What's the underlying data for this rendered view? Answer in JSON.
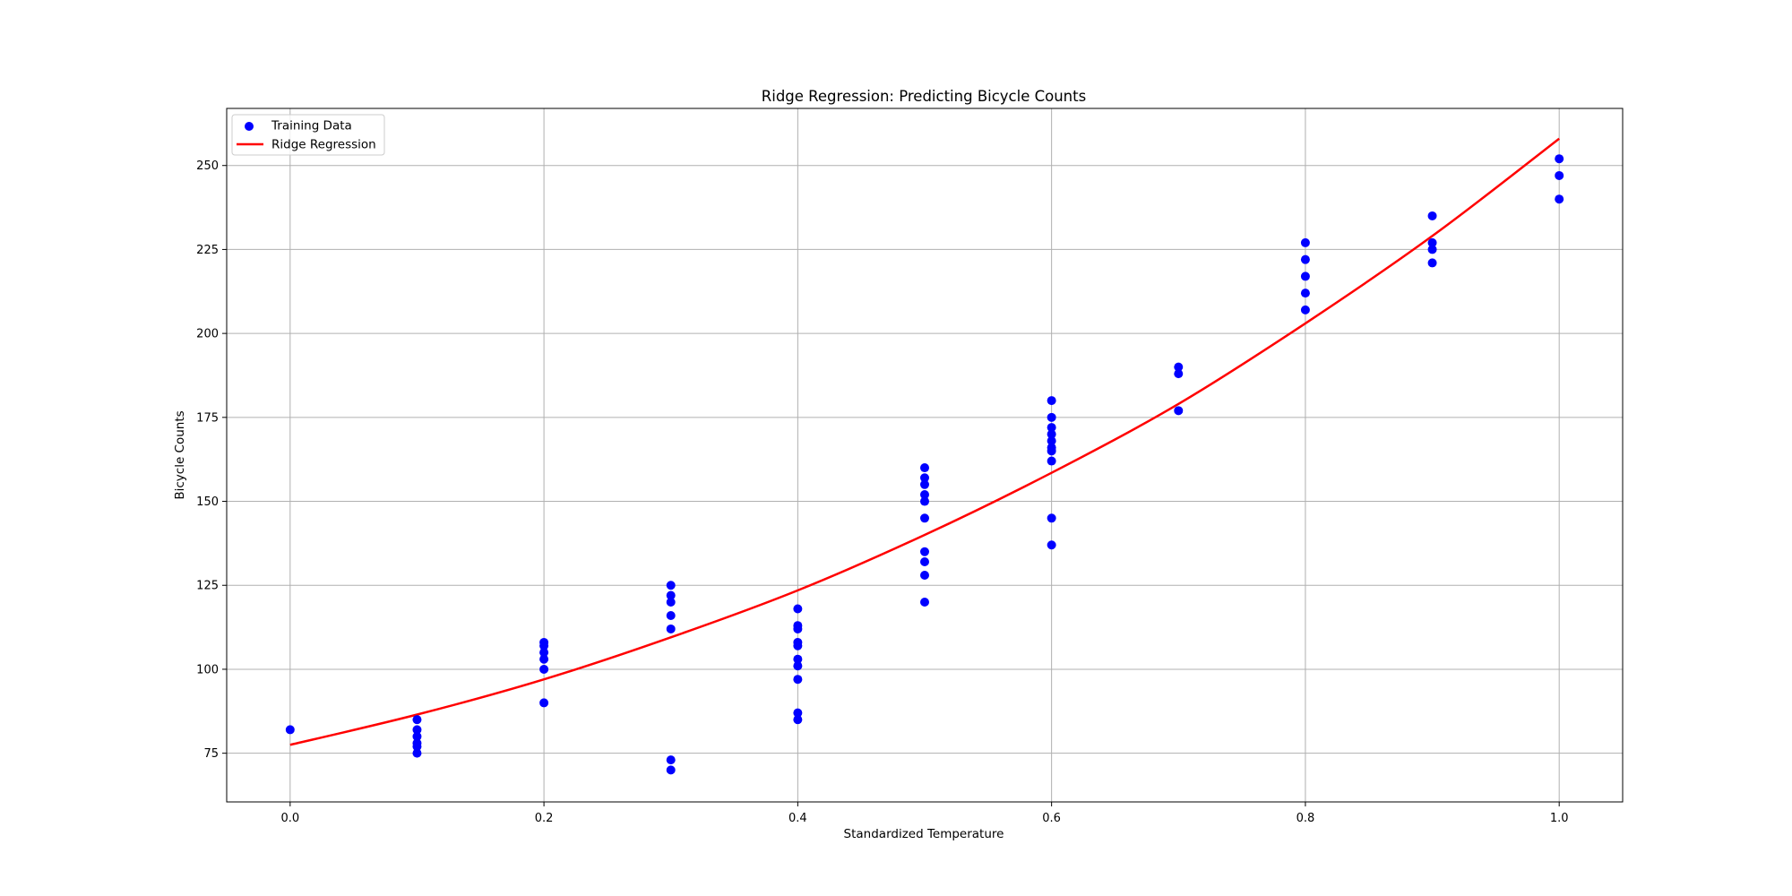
{
  "chart_data": {
    "type": "scatter",
    "title": "Ridge Regression: Predicting Bicycle Counts",
    "xlabel": "Standardized Temperature",
    "ylabel": "Bicycle Counts",
    "xlim": [
      -0.05,
      1.05
    ],
    "ylim": [
      60.5,
      267
    ],
    "xticks": [
      0.0,
      0.2,
      0.4,
      0.6,
      0.8,
      1.0
    ],
    "xtick_labels": [
      "0.0",
      "0.2",
      "0.4",
      "0.6",
      "0.8",
      "1.0"
    ],
    "yticks": [
      75,
      100,
      125,
      150,
      175,
      200,
      225,
      250
    ],
    "ytick_labels": [
      "75",
      "100",
      "125",
      "150",
      "175",
      "200",
      "225",
      "250"
    ],
    "grid": true,
    "legend_position": "top-left",
    "legend": [
      "Training Data",
      "Ridge Regression"
    ],
    "series": [
      {
        "name": "Training Data",
        "kind": "scatter",
        "color": "#0000ff",
        "points": [
          [
            0.0,
            82
          ],
          [
            0.1,
            85
          ],
          [
            0.1,
            82
          ],
          [
            0.1,
            80
          ],
          [
            0.1,
            78
          ],
          [
            0.1,
            77
          ],
          [
            0.1,
            75
          ],
          [
            0.2,
            108
          ],
          [
            0.2,
            107
          ],
          [
            0.2,
            105
          ],
          [
            0.2,
            103
          ],
          [
            0.2,
            100
          ],
          [
            0.2,
            90
          ],
          [
            0.3,
            125
          ],
          [
            0.3,
            122
          ],
          [
            0.3,
            120
          ],
          [
            0.3,
            116
          ],
          [
            0.3,
            112
          ],
          [
            0.3,
            73
          ],
          [
            0.3,
            70
          ],
          [
            0.4,
            118
          ],
          [
            0.4,
            113
          ],
          [
            0.4,
            112
          ],
          [
            0.4,
            108
          ],
          [
            0.4,
            107
          ],
          [
            0.4,
            103
          ],
          [
            0.4,
            101
          ],
          [
            0.4,
            97
          ],
          [
            0.4,
            87
          ],
          [
            0.4,
            85
          ],
          [
            0.5,
            160
          ],
          [
            0.5,
            157
          ],
          [
            0.5,
            155
          ],
          [
            0.5,
            152
          ],
          [
            0.5,
            150
          ],
          [
            0.5,
            145
          ],
          [
            0.5,
            135
          ],
          [
            0.5,
            132
          ],
          [
            0.5,
            128
          ],
          [
            0.5,
            120
          ],
          [
            0.6,
            180
          ],
          [
            0.6,
            175
          ],
          [
            0.6,
            172
          ],
          [
            0.6,
            170
          ],
          [
            0.6,
            168
          ],
          [
            0.6,
            166
          ],
          [
            0.6,
            165
          ],
          [
            0.6,
            162
          ],
          [
            0.6,
            145
          ],
          [
            0.6,
            137
          ],
          [
            0.7,
            190
          ],
          [
            0.7,
            188
          ],
          [
            0.7,
            177
          ],
          [
            0.8,
            227
          ],
          [
            0.8,
            222
          ],
          [
            0.8,
            217
          ],
          [
            0.8,
            212
          ],
          [
            0.8,
            207
          ],
          [
            0.9,
            235
          ],
          [
            0.9,
            227
          ],
          [
            0.9,
            225
          ],
          [
            0.9,
            221
          ],
          [
            1.0,
            252
          ],
          [
            1.0,
            247
          ],
          [
            1.0,
            240
          ]
        ]
      },
      {
        "name": "Ridge Regression",
        "kind": "line",
        "color": "#ff0000",
        "points": [
          [
            0.0,
            77.5
          ],
          [
            0.1,
            86.5
          ],
          [
            0.2,
            97
          ],
          [
            0.3,
            109.5
          ],
          [
            0.4,
            123.5
          ],
          [
            0.5,
            140
          ],
          [
            0.6,
            158.5
          ],
          [
            0.7,
            179
          ],
          [
            0.8,
            203
          ],
          [
            0.9,
            229
          ],
          [
            1.0,
            258
          ]
        ]
      }
    ]
  }
}
